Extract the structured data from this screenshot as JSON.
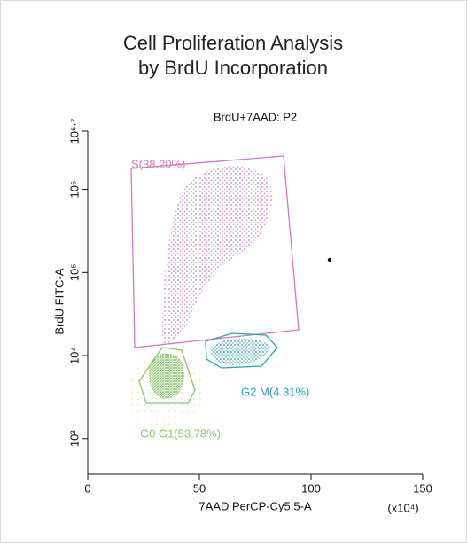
{
  "chart_data": {
    "type": "scatter",
    "title": "Cell Proliferation Analysis",
    "subtitle": "by BrdU Incorporation",
    "plot_title": "BrdU+7AAD: P2",
    "x_label": "7AAD PerCP-Cy5.5-A",
    "x_unit": "(x10⁴)",
    "y_label": "BrdU FITC-A",
    "xlim": [
      0,
      150
    ],
    "xticks": [
      0,
      50,
      100,
      150
    ],
    "ylim": [
      372,
      5011872
    ],
    "log_y": true,
    "yticks": [
      {
        "value": 1000,
        "label": "10³"
      },
      {
        "value": 10000,
        "label": "10⁴"
      },
      {
        "value": 100000,
        "label": "10⁵"
      },
      {
        "value": 1000000,
        "label": "10⁶"
      },
      {
        "value": 5011872,
        "label": "10⁶·⁷"
      }
    ],
    "gates": [
      {
        "name": "S(38.20%)",
        "color": "#d07ac4"
      },
      {
        "name": "G2 M(4.31%)",
        "color": "#2aa6b0"
      },
      {
        "name": "G0 G1(53.78%)",
        "color": "#8cc96a"
      }
    ]
  }
}
